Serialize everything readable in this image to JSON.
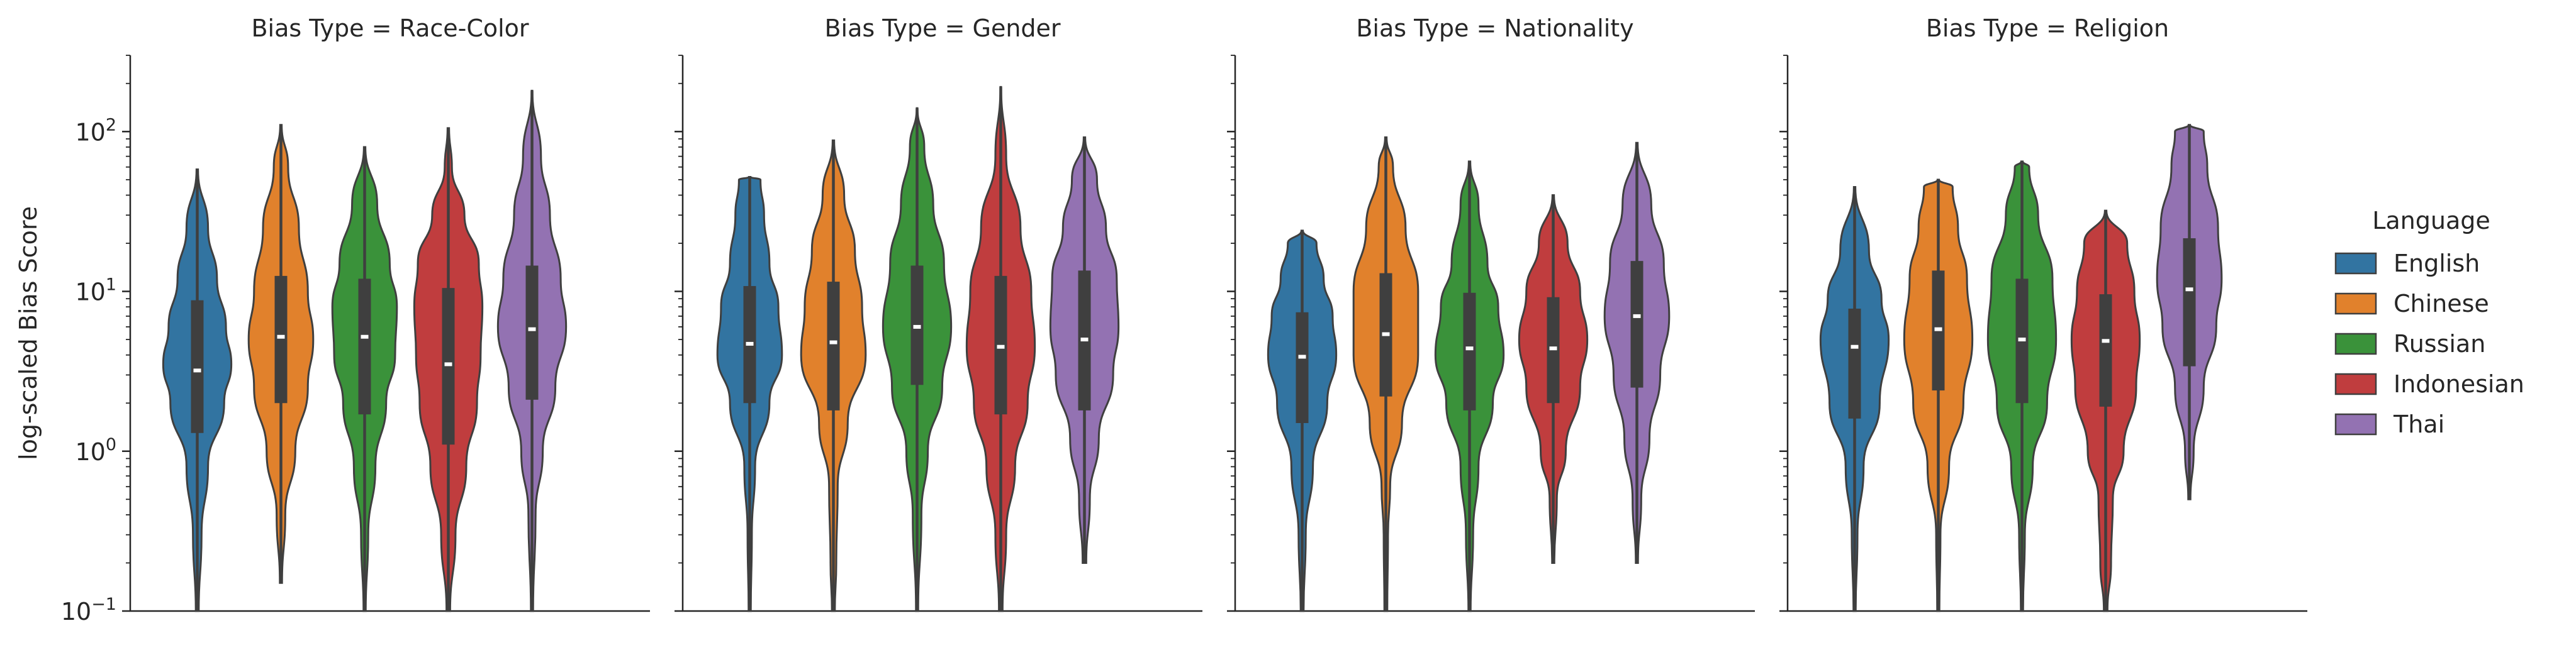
{
  "chart_data": {
    "type": "violin",
    "ylabel": "log-scaled Bias Score",
    "yscale": "log",
    "ylim": [
      0.1,
      300
    ],
    "y_ticks": [
      {
        "value": 100,
        "base": "10",
        "exp": "2"
      },
      {
        "value": 10,
        "base": "10",
        "exp": "1"
      },
      {
        "value": 1,
        "base": "10",
        "exp": "0"
      },
      {
        "value": 0.1,
        "base": "10",
        "exp": "−1"
      }
    ],
    "legend": {
      "title": "Language",
      "placement": "right",
      "entries": [
        {
          "label": "English",
          "color": "#3274a1"
        },
        {
          "label": "Chinese",
          "color": "#e1812c"
        },
        {
          "label": "Russian",
          "color": "#3a923a"
        },
        {
          "label": "Indonesian",
          "color": "#c03d3e"
        },
        {
          "label": "Thai",
          "color": "#9372b2"
        }
      ]
    },
    "panels": [
      {
        "title": "Bias Type = Race-Color",
        "series": [
          {
            "name": "English",
            "min": 0.1,
            "q1": 1.3,
            "median": 3.2,
            "q3": 8.8,
            "max": 58,
            "widths": [
              [
                0.1,
                0.04
              ],
              [
                0.3,
                0.12
              ],
              [
                0.8,
                0.3
              ],
              [
                2,
                0.75
              ],
              [
                3.5,
                0.95
              ],
              [
                6,
                0.8
              ],
              [
                12,
                0.55
              ],
              [
                25,
                0.3
              ],
              [
                58,
                0.02
              ]
            ]
          },
          {
            "name": "Chinese",
            "min": 0.15,
            "q1": 2.0,
            "median": 5.2,
            "q3": 12.5,
            "max": 110,
            "widths": [
              [
                0.15,
                0.03
              ],
              [
                0.4,
                0.12
              ],
              [
                1,
                0.4
              ],
              [
                2.5,
                0.75
              ],
              [
                5,
                0.9
              ],
              [
                10,
                0.75
              ],
              [
                25,
                0.5
              ],
              [
                60,
                0.2
              ],
              [
                110,
                0.02
              ]
            ]
          },
          {
            "name": "Russian",
            "min": 0.1,
            "q1": 1.7,
            "median": 5.2,
            "q3": 12.0,
            "max": 80,
            "widths": [
              [
                0.1,
                0.03
              ],
              [
                0.3,
                0.1
              ],
              [
                0.8,
                0.3
              ],
              [
                2,
                0.6
              ],
              [
                4,
                0.85
              ],
              [
                8,
                0.9
              ],
              [
                15,
                0.7
              ],
              [
                35,
                0.35
              ],
              [
                80,
                0.02
              ]
            ]
          },
          {
            "name": "Indonesian",
            "min": 0.1,
            "q1": 1.1,
            "median": 3.5,
            "q3": 10.5,
            "max": 105,
            "widths": [
              [
                0.1,
                0.05
              ],
              [
                0.3,
                0.2
              ],
              [
                0.8,
                0.5
              ],
              [
                2,
                0.8
              ],
              [
                4,
                0.9
              ],
              [
                8,
                0.95
              ],
              [
                15,
                0.85
              ],
              [
                30,
                0.45
              ],
              [
                60,
                0.1
              ],
              [
                105,
                0.02
              ]
            ]
          },
          {
            "name": "Thai",
            "min": 0.1,
            "q1": 2.1,
            "median": 5.8,
            "q3": 14.5,
            "max": 180,
            "widths": [
              [
                0.1,
                0.03
              ],
              [
                0.4,
                0.1
              ],
              [
                1,
                0.3
              ],
              [
                2.5,
                0.65
              ],
              [
                6,
                0.95
              ],
              [
                12,
                0.8
              ],
              [
                30,
                0.5
              ],
              [
                70,
                0.25
              ],
              [
                180,
                0.01
              ]
            ]
          }
        ]
      },
      {
        "title": "Bias Type = Gender",
        "series": [
          {
            "name": "English",
            "min": 0.1,
            "q1": 2.0,
            "median": 4.7,
            "q3": 10.8,
            "max": 52,
            "widths": [
              [
                0.1,
                0.03
              ],
              [
                0.3,
                0.06
              ],
              [
                0.8,
                0.15
              ],
              [
                2,
                0.55
              ],
              [
                4,
                0.9
              ],
              [
                8,
                0.8
              ],
              [
                15,
                0.55
              ],
              [
                30,
                0.4
              ],
              [
                50,
                0.3
              ],
              [
                52,
                0.02
              ]
            ]
          },
          {
            "name": "Chinese",
            "min": 0.1,
            "q1": 1.8,
            "median": 4.8,
            "q3": 11.5,
            "max": 88,
            "widths": [
              [
                0.1,
                0.04
              ],
              [
                0.2,
                0.08
              ],
              [
                0.6,
                0.12
              ],
              [
                1.5,
                0.4
              ],
              [
                4,
                0.9
              ],
              [
                8,
                0.8
              ],
              [
                18,
                0.6
              ],
              [
                40,
                0.3
              ],
              [
                88,
                0.02
              ]
            ]
          },
          {
            "name": "Russian",
            "min": 0.1,
            "q1": 2.6,
            "median": 6.0,
            "q3": 14.5,
            "max": 140,
            "widths": [
              [
                0.1,
                0.03
              ],
              [
                0.4,
                0.12
              ],
              [
                1,
                0.3
              ],
              [
                2.5,
                0.7
              ],
              [
                6,
                0.95
              ],
              [
                15,
                0.75
              ],
              [
                35,
                0.45
              ],
              [
                80,
                0.2
              ],
              [
                140,
                0.01
              ]
            ]
          },
          {
            "name": "Indonesian",
            "min": 0.1,
            "q1": 1.7,
            "median": 4.5,
            "q3": 12.5,
            "max": 190,
            "widths": [
              [
                0.1,
                0.05
              ],
              [
                0.3,
                0.15
              ],
              [
                0.8,
                0.4
              ],
              [
                2,
                0.75
              ],
              [
                4.5,
                0.95
              ],
              [
                10,
                0.85
              ],
              [
                25,
                0.55
              ],
              [
                70,
                0.15
              ],
              [
                190,
                0.01
              ]
            ]
          },
          {
            "name": "Thai",
            "min": 0.2,
            "q1": 1.8,
            "median": 5.0,
            "q3": 13.5,
            "max": 92,
            "widths": [
              [
                0.2,
                0.05
              ],
              [
                0.5,
                0.15
              ],
              [
                1.2,
                0.4
              ],
              [
                3,
                0.8
              ],
              [
                6,
                0.95
              ],
              [
                12,
                0.9
              ],
              [
                25,
                0.6
              ],
              [
                50,
                0.35
              ],
              [
                92,
                0.02
              ]
            ]
          }
        ]
      },
      {
        "title": "Bias Type = Nationality",
        "series": [
          {
            "name": "English",
            "min": 0.1,
            "q1": 1.5,
            "median": 3.9,
            "q3": 7.4,
            "max": 24,
            "widths": [
              [
                0.1,
                0.04
              ],
              [
                0.3,
                0.1
              ],
              [
                0.8,
                0.3
              ],
              [
                2,
                0.7
              ],
              [
                4,
                0.95
              ],
              [
                7,
                0.85
              ],
              [
                12,
                0.6
              ],
              [
                20,
                0.4
              ],
              [
                24,
                0.02
              ]
            ]
          },
          {
            "name": "Chinese",
            "min": 0.1,
            "q1": 2.2,
            "median": 5.4,
            "q3": 13.0,
            "max": 92,
            "widths": [
              [
                0.1,
                0.04
              ],
              [
                0.3,
                0.06
              ],
              [
                0.6,
                0.12
              ],
              [
                1.5,
                0.45
              ],
              [
                4,
                0.9
              ],
              [
                10,
                0.9
              ],
              [
                25,
                0.55
              ],
              [
                60,
                0.2
              ],
              [
                92,
                0.02
              ]
            ]
          },
          {
            "name": "Russian",
            "min": 0.1,
            "q1": 1.8,
            "median": 4.4,
            "q3": 9.8,
            "max": 65,
            "widths": [
              [
                0.1,
                0.03
              ],
              [
                0.3,
                0.1
              ],
              [
                0.8,
                0.25
              ],
              [
                2,
                0.65
              ],
              [
                4,
                0.95
              ],
              [
                8,
                0.8
              ],
              [
                15,
                0.5
              ],
              [
                35,
                0.25
              ],
              [
                65,
                0.02
              ]
            ]
          },
          {
            "name": "Indonesian",
            "min": 0.2,
            "q1": 2.0,
            "median": 4.4,
            "q3": 9.2,
            "max": 40,
            "widths": [
              [
                0.2,
                0.03
              ],
              [
                0.5,
                0.1
              ],
              [
                1,
                0.35
              ],
              [
                2.5,
                0.75
              ],
              [
                5,
                0.95
              ],
              [
                10,
                0.75
              ],
              [
                20,
                0.4
              ],
              [
                40,
                0.02
              ]
            ]
          },
          {
            "name": "Thai",
            "min": 0.2,
            "q1": 2.5,
            "median": 7.0,
            "q3": 15.5,
            "max": 85,
            "widths": [
              [
                0.2,
                0.03
              ],
              [
                0.5,
                0.12
              ],
              [
                1.2,
                0.35
              ],
              [
                3,
                0.65
              ],
              [
                7,
                0.9
              ],
              [
                15,
                0.75
              ],
              [
                35,
                0.4
              ],
              [
                85,
                0.02
              ]
            ]
          }
        ]
      },
      {
        "title": "Bias Type = Religion",
        "series": [
          {
            "name": "English",
            "min": 0.1,
            "q1": 1.6,
            "median": 4.5,
            "q3": 7.8,
            "max": 45,
            "widths": [
              [
                0.1,
                0.03
              ],
              [
                0.3,
                0.08
              ],
              [
                0.8,
                0.25
              ],
              [
                2,
                0.7
              ],
              [
                5,
                0.95
              ],
              [
                9,
                0.75
              ],
              [
                18,
                0.4
              ],
              [
                45,
                0.02
              ]
            ]
          },
          {
            "name": "Chinese",
            "min": 0.1,
            "q1": 2.4,
            "median": 5.8,
            "q3": 13.5,
            "max": 50,
            "widths": [
              [
                0.1,
                0.03
              ],
              [
                0.3,
                0.06
              ],
              [
                0.8,
                0.3
              ],
              [
                2,
                0.7
              ],
              [
                5,
                0.95
              ],
              [
                12,
                0.8
              ],
              [
                25,
                0.55
              ],
              [
                45,
                0.4
              ],
              [
                50,
                0.02
              ]
            ]
          },
          {
            "name": "Russian",
            "min": 0.1,
            "q1": 2.0,
            "median": 5.0,
            "q3": 12.0,
            "max": 65,
            "widths": [
              [
                0.1,
                0.03
              ],
              [
                0.3,
                0.08
              ],
              [
                0.8,
                0.3
              ],
              [
                2,
                0.7
              ],
              [
                5,
                0.95
              ],
              [
                12,
                0.85
              ],
              [
                30,
                0.45
              ],
              [
                60,
                0.2
              ],
              [
                65,
                0.02
              ]
            ]
          },
          {
            "name": "Indonesian",
            "min": 0.1,
            "q1": 1.9,
            "median": 4.9,
            "q3": 9.6,
            "max": 32,
            "widths": [
              [
                0.1,
                0.05
              ],
              [
                0.2,
                0.15
              ],
              [
                0.5,
                0.2
              ],
              [
                1,
                0.5
              ],
              [
                2.5,
                0.85
              ],
              [
                5,
                0.95
              ],
              [
                10,
                0.8
              ],
              [
                20,
                0.6
              ],
              [
                32,
                0.02
              ]
            ]
          },
          {
            "name": "Thai",
            "min": 0.5,
            "q1": 3.4,
            "median": 10.3,
            "q3": 21.5,
            "max": 110,
            "widths": [
              [
                0.5,
                0.03
              ],
              [
                1,
                0.12
              ],
              [
                2.5,
                0.4
              ],
              [
                6,
                0.75
              ],
              [
                12,
                0.9
              ],
              [
                25,
                0.8
              ],
              [
                60,
                0.5
              ],
              [
                100,
                0.4
              ],
              [
                110,
                0.02
              ]
            ]
          }
        ]
      }
    ]
  }
}
